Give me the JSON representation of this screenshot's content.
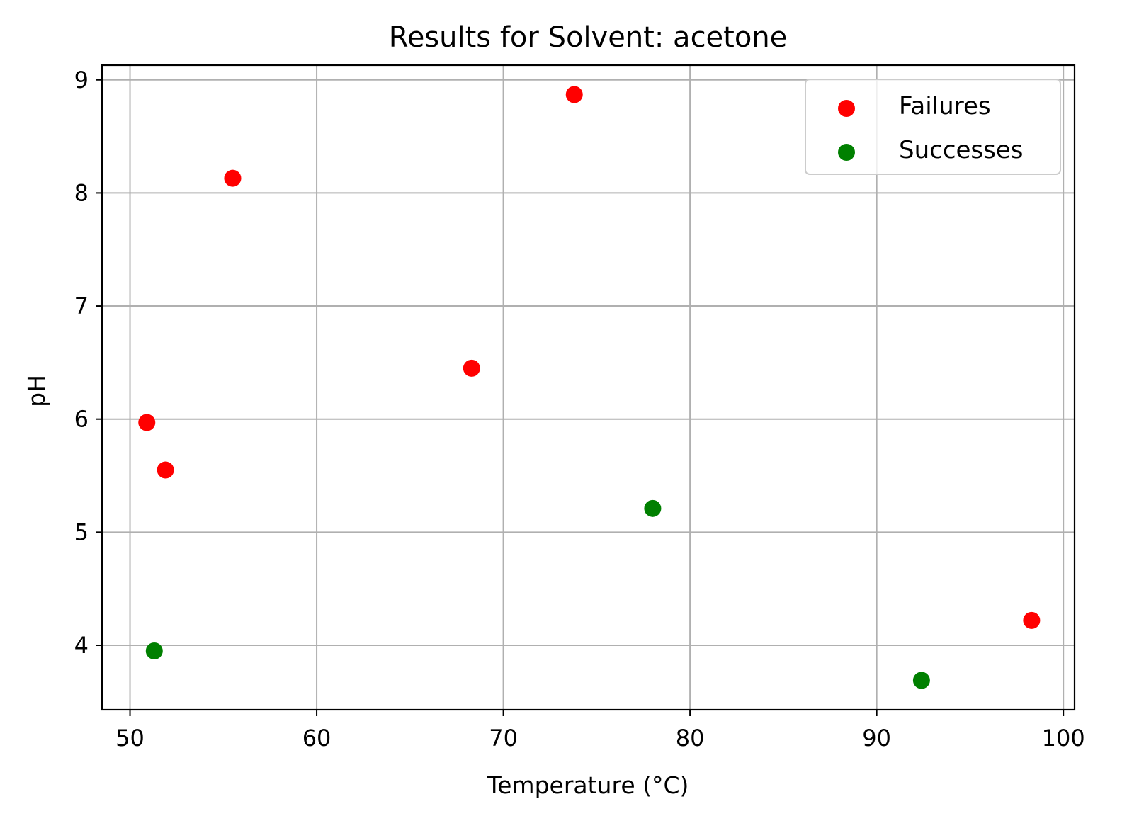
{
  "chart_data": {
    "type": "scatter",
    "title": "Results for Solvent: acetone",
    "xlabel": "Temperature (°C)",
    "ylabel": "pH",
    "xlim": [
      48.5,
      100.6
    ],
    "ylim": [
      3.43,
      9.13
    ],
    "xticks": [
      50,
      60,
      70,
      80,
      90,
      100
    ],
    "yticks": [
      4,
      5,
      6,
      7,
      8,
      9
    ],
    "grid": true,
    "legend_position": "top-right",
    "series": [
      {
        "name": "Failures",
        "color": "#ff0000",
        "points": [
          {
            "x": 55.5,
            "y": 8.13
          },
          {
            "x": 73.8,
            "y": 8.87
          },
          {
            "x": 68.3,
            "y": 6.45
          },
          {
            "x": 50.9,
            "y": 5.97
          },
          {
            "x": 51.9,
            "y": 5.55
          },
          {
            "x": 98.3,
            "y": 4.22
          }
        ]
      },
      {
        "name": "Successes",
        "color": "#008000",
        "points": [
          {
            "x": 78.0,
            "y": 5.21
          },
          {
            "x": 51.3,
            "y": 3.95
          },
          {
            "x": 92.4,
            "y": 3.69
          }
        ]
      }
    ]
  }
}
